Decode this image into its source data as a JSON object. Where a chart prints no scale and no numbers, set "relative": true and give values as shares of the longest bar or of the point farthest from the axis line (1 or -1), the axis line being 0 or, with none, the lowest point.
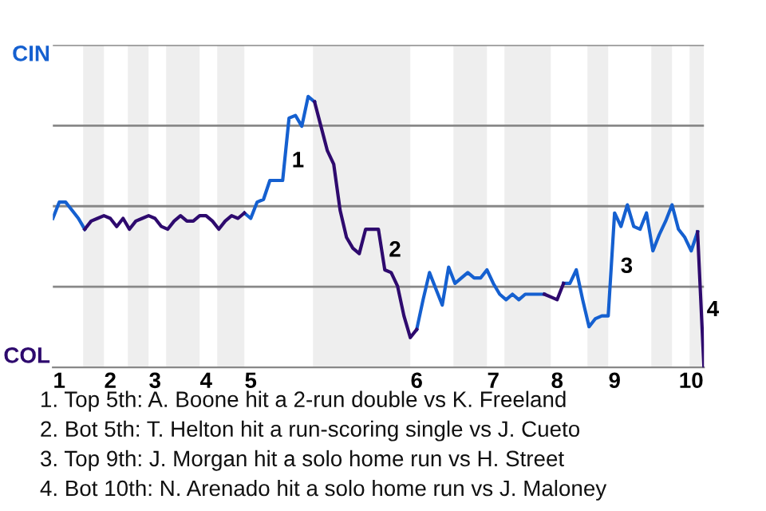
{
  "chart_data": {
    "type": "line",
    "relative": true,
    "categories": [
      null,
      "1",
      null,
      null,
      null,
      null,
      null,
      null,
      null,
      "2",
      null,
      null,
      null,
      null,
      null,
      null,
      "3",
      null,
      null,
      null,
      null,
      null,
      null,
      null,
      "4",
      null,
      null,
      null,
      null,
      null,
      null,
      "5",
      null,
      null,
      null,
      null,
      null,
      null,
      null,
      null,
      null,
      null,
      null,
      null,
      null,
      null,
      null,
      null,
      null,
      null,
      null,
      null,
      null,
      null,
      null,
      null,
      null,
      "6",
      null,
      null,
      null,
      null,
      null,
      null,
      null,
      null,
      null,
      null,
      null,
      "7",
      null,
      null,
      null,
      null,
      null,
      null,
      null,
      null,
      null,
      "8",
      null,
      null,
      null,
      null,
      null,
      null,
      null,
      null,
      "9",
      null,
      null,
      null,
      null,
      null,
      null,
      null,
      null,
      null,
      null,
      null,
      "10",
      null,
      null
    ],
    "grid": "y",
    "series": [
      {
        "color": "#1560d0",
        "values": [
          0.55,
          0.61,
          0.61,
          0.58,
          0.55,
          0.51,
          null,
          null,
          null,
          null,
          null,
          null,
          null,
          null,
          null,
          null,
          null,
          null,
          null,
          null,
          null,
          null,
          null,
          null,
          null,
          null,
          null,
          null,
          null,
          null,
          0.57,
          0.55,
          0.61,
          0.62,
          0.69,
          0.69,
          0.69,
          0.92,
          0.93,
          0.89,
          1,
          0.98,
          null,
          null,
          null,
          null,
          null,
          null,
          null,
          null,
          null,
          null,
          null,
          null,
          null,
          null,
          null,
          0.14,
          0.25,
          0.35,
          0.29,
          0.23,
          0.37,
          0.31,
          0.33,
          0.35,
          0.33,
          0.33,
          0.36,
          0.31,
          0.27,
          0.25,
          0.27,
          0.25,
          0.27,
          0.27,
          0.27,
          0.27,
          null,
          null,
          0.31,
          0.31,
          0.36,
          0.25,
          0.15,
          0.18,
          0.19,
          0.19,
          0.57,
          0.52,
          0.6,
          0.52,
          0.51,
          0.57,
          0.43,
          0.49,
          0.54,
          0.6,
          0.51,
          0.48,
          0.43,
          0.5,
          null
        ]
      },
      {
        "color": "#2e0a6e",
        "values": [
          null,
          null,
          null,
          null,
          null,
          0.51,
          0.54,
          0.55,
          0.56,
          0.55,
          0.52,
          0.55,
          0.51,
          0.54,
          0.55,
          0.56,
          0.55,
          0.52,
          0.51,
          0.54,
          0.56,
          0.54,
          0.54,
          0.56,
          0.56,
          0.54,
          0.51,
          0.54,
          0.56,
          0.55,
          0.57,
          null,
          null,
          null,
          null,
          null,
          null,
          null,
          null,
          null,
          null,
          0.98,
          0.89,
          0.8,
          0.75,
          0.58,
          0.48,
          0.44,
          0.42,
          0.51,
          0.51,
          0.51,
          0.36,
          0.35,
          0.3,
          0.19,
          0.11,
          0.14,
          null,
          null,
          null,
          null,
          null,
          null,
          null,
          null,
          null,
          null,
          null,
          null,
          null,
          null,
          null,
          null,
          null,
          null,
          null,
          0.27,
          0.26,
          0.25,
          0.31,
          null,
          null,
          null,
          null,
          null,
          null,
          null,
          null,
          null,
          null,
          null,
          null,
          null,
          null,
          null,
          null,
          null,
          null,
          null,
          null,
          0.5,
          0
        ]
      }
    ],
    "annotations": [
      "CIN",
      "COL",
      "1",
      "2",
      "3",
      "4",
      "1. Top 5th: A. Boone hit a 2-run double vs K. Freeland",
      "2. Bot 5th: T. Helton hit a run-scoring single vs J. Cueto",
      "3. Top 9th: J. Morgan hit a solo home run vs H. Street",
      "4. Bot 10th: N. Arenado hit a solo home run vs J. Maloney"
    ]
  }
}
